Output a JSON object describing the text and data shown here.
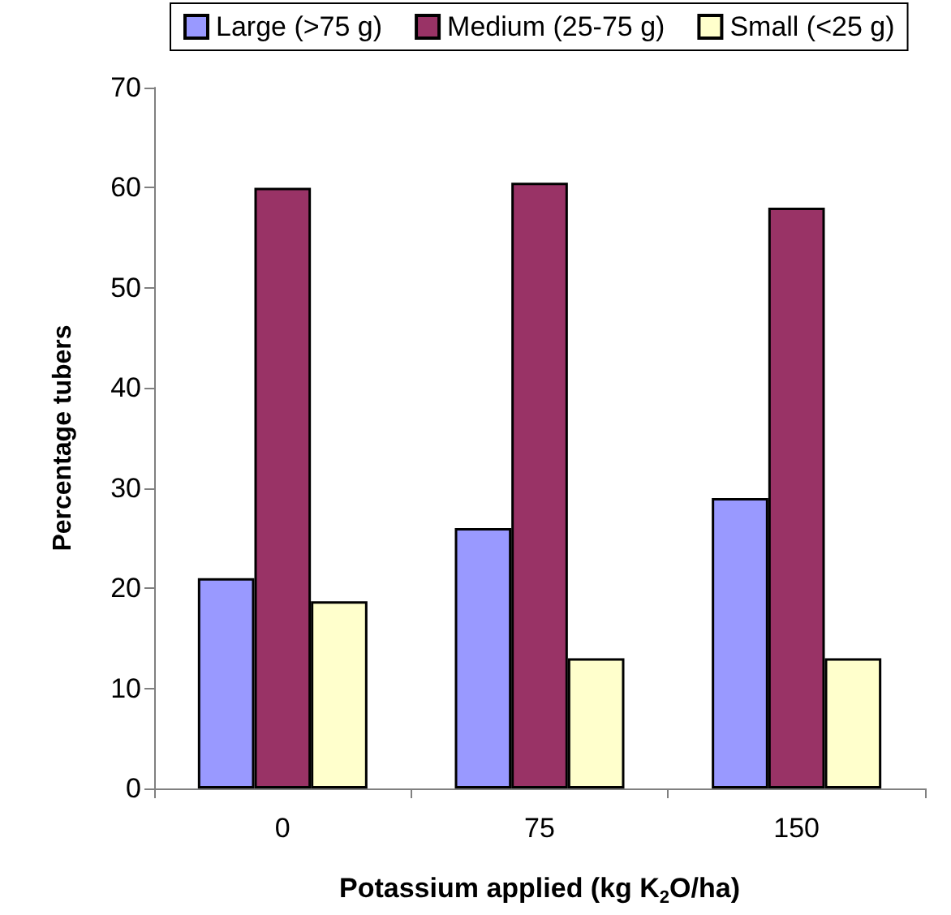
{
  "chart_data": {
    "type": "bar",
    "xlabel": "Potassium applied (kg K$_{2}$O/ha)",
    "ylabel": "Percentage tubers",
    "categories": [
      "0",
      "75",
      "150"
    ],
    "series": [
      {
        "name": "Large (>75 g)",
        "color": "#9999ff",
        "values": [
          21,
          26,
          29
        ]
      },
      {
        "name": "Medium (25-75 g)",
        "color": "#993366",
        "values": [
          60,
          60.5,
          58
        ]
      },
      {
        "name": "Small (<25 g)",
        "color": "#ffffcc",
        "values": [
          18.7,
          13,
          13
        ]
      }
    ],
    "ylim": [
      0,
      70
    ],
    "yticks": [
      0,
      10,
      20,
      30,
      40,
      50,
      60,
      70
    ],
    "grid": false,
    "legend": "top"
  }
}
